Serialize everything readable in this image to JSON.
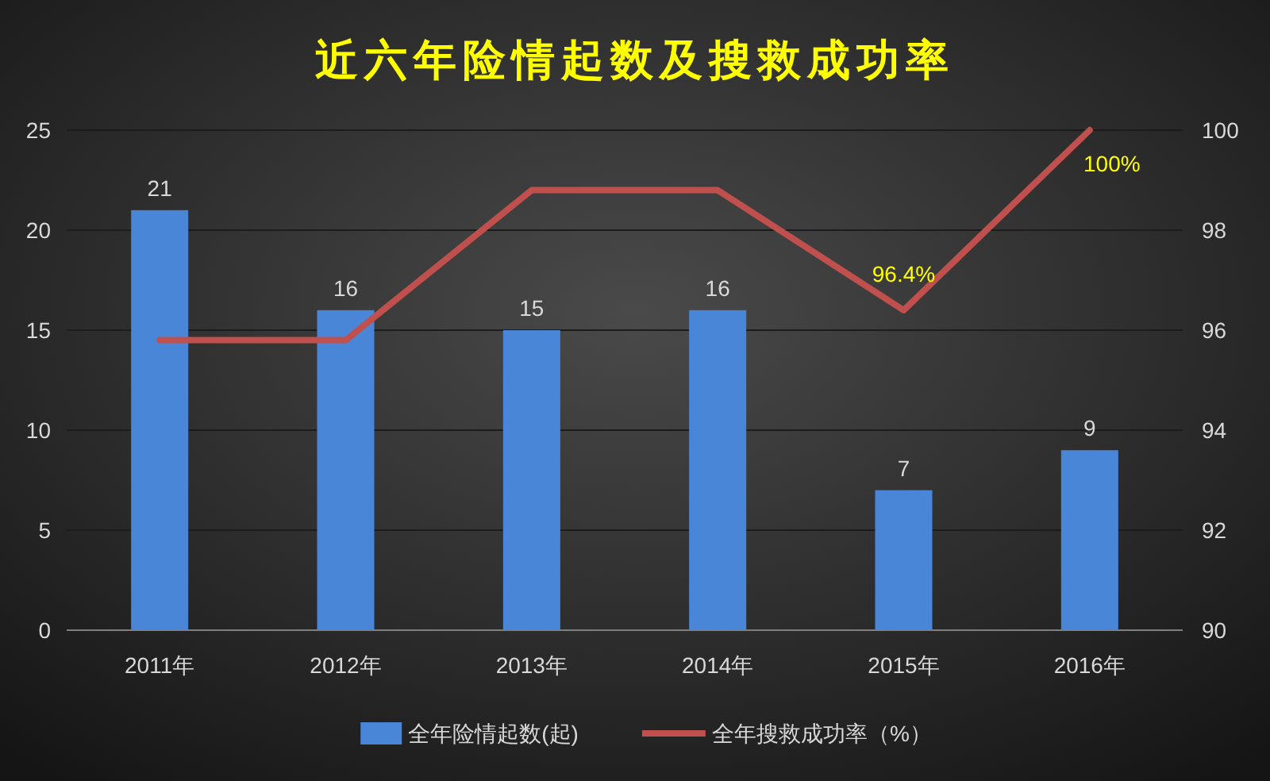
{
  "chart_data": {
    "type": "bar",
    "title": "近六年险情起数及搜救成功率",
    "categories": [
      "2011年",
      "2012年",
      "2013年",
      "2014年",
      "2015年",
      "2016年"
    ],
    "series": [
      {
        "name": "全年险情起数(起)",
        "color": "#4a86d8",
        "values": [
          21,
          16,
          15,
          16,
          7,
          9
        ],
        "value_labels": [
          "21",
          "16",
          "15",
          "16",
          "7",
          "9"
        ]
      },
      {
        "name": "全年搜救成功率（%）",
        "type": "line",
        "axis": "y2",
        "color": "#c0504d",
        "values": [
          95.8,
          95.8,
          98.8,
          98.8,
          96.4,
          100
        ],
        "value_labels": [
          null,
          null,
          null,
          null,
          "96.4%",
          "100%"
        ]
      }
    ],
    "ylim": [
      0,
      25
    ],
    "yticks": [
      0,
      5,
      10,
      15,
      20,
      25
    ],
    "y2lim": [
      90,
      100
    ],
    "y2ticks": [
      90,
      92,
      94,
      96,
      98,
      100
    ],
    "grid": "y",
    "legend": "bottom",
    "marker": "none",
    "line_style": "solid"
  }
}
